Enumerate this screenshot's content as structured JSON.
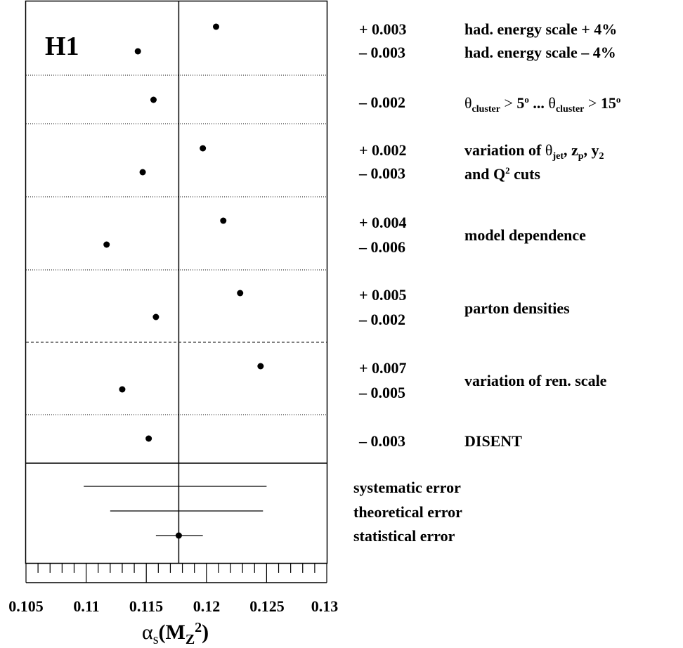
{
  "chart_data": {
    "type": "scatter",
    "experiment_label": "H1",
    "xlabel_greek": "α",
    "xlabel_sub": "s",
    "xlabel_paren_open": "(M",
    "xlabel_inner_sub": "Z",
    "xlabel_sup": "2",
    "xlabel_close": ")",
    "xlim": [
      0.105,
      0.13
    ],
    "xticks": [
      0.105,
      0.11,
      0.115,
      0.12,
      0.125,
      0.13
    ],
    "xtick_labels": [
      "0.105",
      "0.11",
      "0.115",
      "0.12",
      "0.125",
      "0.13"
    ],
    "central_value": 0.1177,
    "sources": [
      {
        "points": [
          0.1208,
          0.1143
        ],
        "shifts": [
          "+ 0.003",
          "– 0.003"
        ],
        "labels": [
          "had. energy scale + 4%",
          "had. energy scale – 4%"
        ]
      },
      {
        "points": [
          0.1156
        ],
        "shifts": [
          "– 0.002"
        ],
        "labels": [
          "θcluster > 5o ... θcluster > 15o"
        ]
      },
      {
        "points": [
          0.1197,
          0.1147
        ],
        "shifts": [
          "+ 0.002",
          "– 0.003"
        ],
        "labels": [
          "variation of θjet, zp, y2",
          "and Q2 cuts"
        ]
      },
      {
        "points": [
          0.1214,
          0.1117
        ],
        "shifts": [
          "+ 0.004",
          "– 0.006"
        ],
        "labels": [
          "model dependence"
        ]
      },
      {
        "points": [
          0.1228,
          0.1158
        ],
        "shifts": [
          "+ 0.005",
          "– 0.002"
        ],
        "labels": [
          "parton densities"
        ]
      },
      {
        "points": [
          0.1245,
          0.113
        ],
        "shifts": [
          "+ 0.007",
          "– 0.005"
        ],
        "labels": [
          "variation of ren. scale"
        ]
      },
      {
        "points": [
          0.1152
        ],
        "shifts": [
          "– 0.003"
        ],
        "labels": [
          "DISENT"
        ]
      }
    ],
    "errors": [
      {
        "name": "systematic error",
        "low": 0.1098,
        "high": 0.125
      },
      {
        "name": "theoretical error",
        "low": 0.112,
        "high": 0.1247
      },
      {
        "name": "statistical error",
        "low": 0.1158,
        "high": 0.1197,
        "marker": true
      }
    ]
  }
}
